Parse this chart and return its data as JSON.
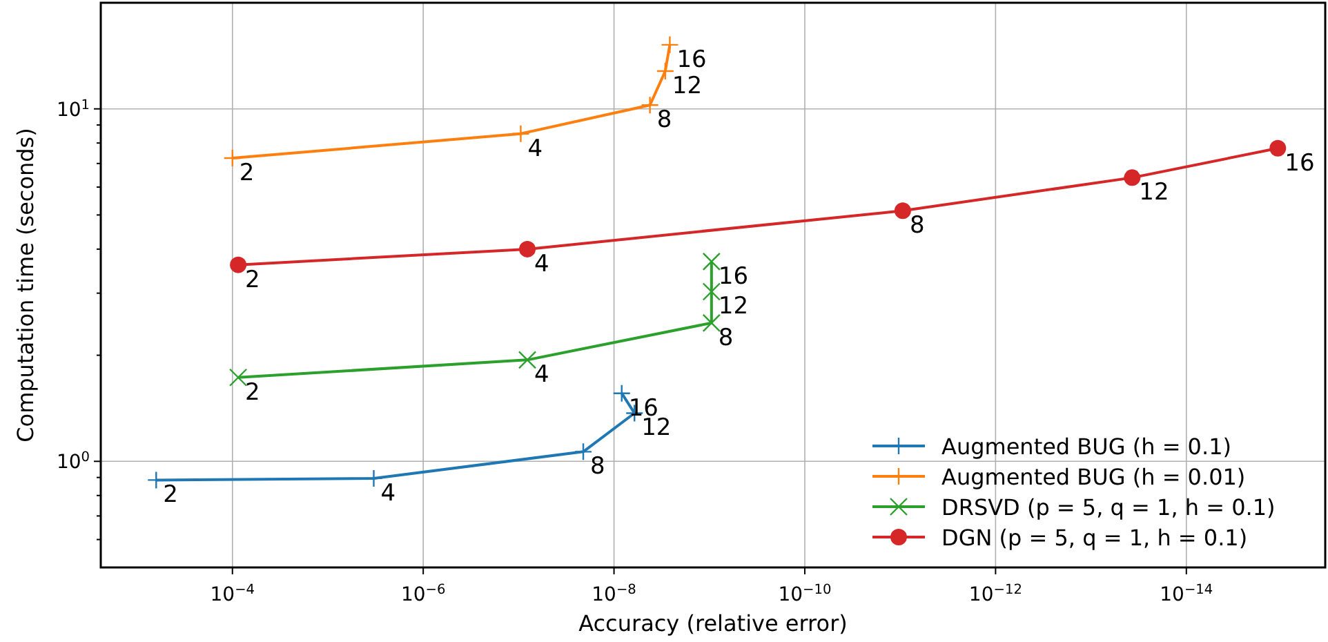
{
  "chart_data": {
    "type": "line",
    "xlabel": "Accuracy (relative error)",
    "ylabel": "Computation time (seconds)",
    "log": "xy",
    "grid": true,
    "legend": "bottom right",
    "line_style": "solid",
    "xlim": [
      0.0024,
      3.5e-16
    ],
    "ylim": [
      0.5,
      20
    ],
    "xticks": [
      {
        "value": 0.0001,
        "label": "10$^{−4}$"
      },
      {
        "value": 1e-06,
        "label": "10$^{−6}$"
      },
      {
        "value": 1e-08,
        "label": "10$^{−8}$"
      },
      {
        "value": 1e-10,
        "label": "10$^{−10}$"
      },
      {
        "value": 1e-12,
        "label": "10$^{−12}$"
      },
      {
        "value": 1e-14,
        "label": "10$^{−14}$"
      }
    ],
    "yticks": [
      {
        "value": 0.6,
        "label": null
      },
      {
        "value": 0.7,
        "label": null
      },
      {
        "value": 0.8,
        "label": null
      },
      {
        "value": 0.9,
        "label": null
      },
      {
        "value": 1,
        "label": "10$^{0}$"
      },
      {
        "value": 2,
        "label": null
      },
      {
        "value": 3,
        "label": null
      },
      {
        "value": 4,
        "label": null
      },
      {
        "value": 5,
        "label": null
      },
      {
        "value": 6,
        "label": null
      },
      {
        "value": 7,
        "label": null
      },
      {
        "value": 8,
        "label": null
      },
      {
        "value": 9,
        "label": null
      },
      {
        "value": 10,
        "label": "10$^{1}$"
      }
    ],
    "series": [
      {
        "name": "Augmented BUG (h = 0.1)",
        "color": "#1f77b4",
        "marker": "plus",
        "x": [
          0.00063,
          3.3e-06,
          2.1e-08,
          6.1e-09,
          8.3e-09
        ],
        "values": [
          0.885,
          0.895,
          1.065,
          1.37,
          1.56
        ]
      },
      {
        "name": "Augmented BUG (h = 0.01)",
        "color": "#ff7f0e",
        "marker": "plus",
        "x": [
          0.0001,
          9.5e-08,
          4.2e-09,
          2.9e-09,
          2.6e-09
        ],
        "values": [
          7.25,
          8.5,
          10.25,
          12.8,
          15.2
        ]
      },
      {
        "name": "DRSVD (p = 5, q = 1, h = 0.1)",
        "color": "#2ca02c",
        "marker": "cross",
        "x": [
          8.7e-05,
          8.1e-08,
          9.5e-10,
          9.5e-10,
          9.5e-10
        ],
        "values": [
          1.73,
          1.94,
          2.47,
          3.03,
          3.69
        ]
      },
      {
        "name": "DGN (p = 5, q = 1, h = 0.1)",
        "color": "#d62728",
        "marker": "circle",
        "x": [
          8.7e-05,
          8.1e-08,
          9.4e-12,
          3.7e-14,
          1.1e-15
        ],
        "values": [
          3.61,
          4.0,
          5.14,
          6.38,
          7.73
        ]
      }
    ],
    "annotations": [
      {
        "text": "2",
        "x": 0.00063,
        "y": 0.885
      },
      {
        "text": "4",
        "x": 3.3e-06,
        "y": 0.895
      },
      {
        "text": "8",
        "x": 2.1e-08,
        "y": 1.065
      },
      {
        "text": "12",
        "x": 6.1e-09,
        "y": 1.37
      },
      {
        "text": "16",
        "x": 8.3e-09,
        "y": 1.56
      },
      {
        "text": "2",
        "x": 0.0001,
        "y": 7.25
      },
      {
        "text": "4",
        "x": 9.5e-08,
        "y": 8.5
      },
      {
        "text": "8",
        "x": 4.2e-09,
        "y": 10.25
      },
      {
        "text": "12",
        "x": 2.9e-09,
        "y": 12.8
      },
      {
        "text": "16",
        "x": 2.6e-09,
        "y": 15.2
      },
      {
        "text": "2",
        "x": 8.7e-05,
        "y": 1.73
      },
      {
        "text": "4",
        "x": 8.1e-08,
        "y": 1.94
      },
      {
        "text": "8",
        "x": 9.5e-10,
        "y": 2.47
      },
      {
        "text": "12",
        "x": 9.5e-10,
        "y": 3.03
      },
      {
        "text": "16",
        "x": 9.5e-10,
        "y": 3.69
      },
      {
        "text": "2",
        "x": 8.7e-05,
        "y": 3.61
      },
      {
        "text": "4",
        "x": 8.1e-08,
        "y": 4.0
      },
      {
        "text": "8",
        "x": 9.4e-12,
        "y": 5.14
      },
      {
        "text": "12",
        "x": 3.7e-14,
        "y": 6.38
      },
      {
        "text": "16",
        "x": 1.1e-15,
        "y": 7.73
      }
    ]
  }
}
